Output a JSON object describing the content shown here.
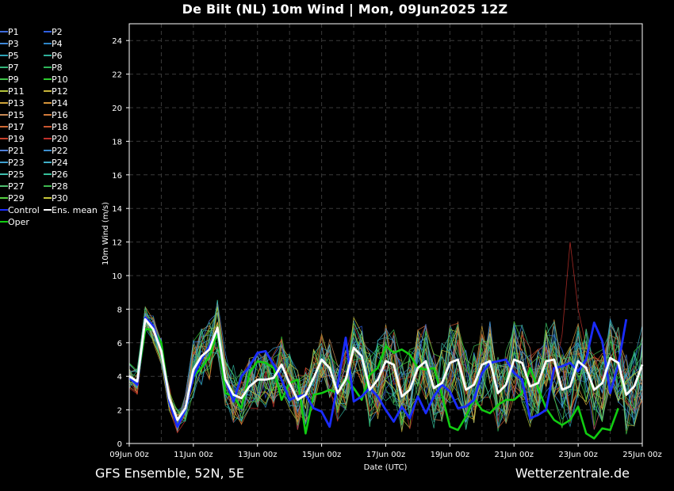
{
  "chart_data": {
    "type": "line",
    "title": "De Bilt  (NL)  10m Wind | Mon, 09Jun2025 12Z",
    "xlabel": "Date (UTC)",
    "ylabel": "10m Wind (m/s)",
    "ylim": [
      0,
      25
    ],
    "yticks": [
      0,
      2,
      4,
      6,
      8,
      10,
      12,
      14,
      16,
      18,
      20,
      22,
      24
    ],
    "x_time_step_hours": 6,
    "x_start": "09Jun 00z",
    "x_ticks": [
      "09Jun 00z",
      "11Jun 00z",
      "13Jun 00z",
      "15Jun 00z",
      "17Jun 00z",
      "19Jun 00z",
      "21Jun 00z",
      "23Jun 00z",
      "25Jun 00z"
    ],
    "grid": true,
    "legend_position": "left",
    "legend": [
      {
        "name": "P1",
        "color": "#3d6bdc"
      },
      {
        "name": "P2",
        "color": "#2f5fe0"
      },
      {
        "name": "P3",
        "color": "#3f88d8"
      },
      {
        "name": "P4",
        "color": "#2e86c8"
      },
      {
        "name": "P5",
        "color": "#2ea3b8"
      },
      {
        "name": "P6",
        "color": "#2fae99"
      },
      {
        "name": "P7",
        "color": "#35b57a"
      },
      {
        "name": "P8",
        "color": "#2fb55a"
      },
      {
        "name": "P9",
        "color": "#3fc448"
      },
      {
        "name": "P10",
        "color": "#2ecb2e"
      },
      {
        "name": "P11",
        "color": "#b2c43a"
      },
      {
        "name": "P12",
        "color": "#c8b43a"
      },
      {
        "name": "P13",
        "color": "#cfa43a"
      },
      {
        "name": "P14",
        "color": "#d6943a"
      },
      {
        "name": "P15",
        "color": "#c98a55"
      },
      {
        "name": "P16",
        "color": "#d07a3a"
      },
      {
        "name": "P17",
        "color": "#d06a35"
      },
      {
        "name": "P18",
        "color": "#c8552f"
      },
      {
        "name": "P19",
        "color": "#c8402a"
      },
      {
        "name": "P20",
        "color": "#c0302a"
      },
      {
        "name": "P21",
        "color": "#4f7fd8"
      },
      {
        "name": "P22",
        "color": "#3d8fd0"
      },
      {
        "name": "P23",
        "color": "#3fa0d0"
      },
      {
        "name": "P24",
        "color": "#40b0c8"
      },
      {
        "name": "P25",
        "color": "#3fc0b0"
      },
      {
        "name": "P26",
        "color": "#35c09a"
      },
      {
        "name": "P27",
        "color": "#50c070"
      },
      {
        "name": "P28",
        "color": "#3fb850"
      },
      {
        "name": "P29",
        "color": "#55d040"
      },
      {
        "name": "P30",
        "color": "#c8c83a"
      },
      {
        "name": "Control",
        "color": "#1a2cff"
      },
      {
        "name": "Ens. mean",
        "color": "#ffffff"
      },
      {
        "name": "Oper",
        "color": "#11cc11"
      }
    ],
    "series": [
      {
        "name": "Control",
        "color": "#1a2cff",
        "values": [
          3.9,
          3.5,
          7.5,
          7.0,
          5.5,
          2.5,
          1.0,
          2.0,
          4.0,
          5.0,
          5.8,
          6.8,
          3.8,
          2.5,
          4.0,
          4.6,
          5.4,
          5.5,
          4.7,
          3.8,
          2.6,
          2.8,
          2.9,
          2.1,
          1.9,
          1.0,
          3.5,
          6.3,
          2.5,
          2.8,
          3.3,
          2.8,
          2.0,
          1.3,
          2.2,
          1.5,
          2.8,
          1.8,
          2.8,
          3.5,
          3.1,
          2.1,
          2.2,
          2.6,
          4.2,
          4.8,
          4.9,
          5.0,
          4.2,
          3.8,
          1.5,
          1.7,
          2.0,
          4.5,
          4.6,
          4.8,
          4.3,
          5.0,
          7.2,
          6.1,
          3.0,
          4.7,
          7.4
        ]
      },
      {
        "name": "Ens. mean",
        "color": "#ffffff",
        "values": [
          4.0,
          3.7,
          7.4,
          6.8,
          5.5,
          2.7,
          1.4,
          2.1,
          4.4,
          5.2,
          5.6,
          6.9,
          3.8,
          2.9,
          2.7,
          3.4,
          3.8,
          3.8,
          3.9,
          4.7,
          3.6,
          2.6,
          2.9,
          3.9,
          5.0,
          4.5,
          3.0,
          3.8,
          5.7,
          5.2,
          3.2,
          3.8,
          4.9,
          4.7,
          2.8,
          3.2,
          4.5,
          4.9,
          3.3,
          3.6,
          4.8,
          5.0,
          3.2,
          3.5,
          4.7,
          4.9,
          3.0,
          3.5,
          5.0,
          4.8,
          3.4,
          3.6,
          4.9,
          5.0,
          3.2,
          3.4,
          4.9,
          4.5,
          3.2,
          3.6,
          5.1,
          4.8,
          2.9,
          3.4,
          4.7
        ]
      },
      {
        "name": "Oper",
        "color": "#11cc11",
        "values": [
          3.9,
          3.6,
          6.8,
          6.8,
          6.0,
          2.6,
          1.4,
          2.1,
          4.0,
          4.5,
          5.2,
          6.6,
          3.0,
          2.8,
          2.1,
          4.2,
          4.9,
          4.8,
          4.5,
          2.6,
          3.6,
          3.8,
          0.6,
          2.9,
          3.0,
          3.2,
          3.0,
          3.9,
          3.3,
          2.6,
          4.1,
          4.5,
          5.8,
          5.4,
          5.6,
          5.3,
          4.5,
          4.4,
          4.5,
          2.9,
          1.0,
          0.8,
          1.6,
          2.7,
          2.0,
          1.8,
          2.3,
          2.6,
          2.6,
          3.0,
          4.5,
          3.3,
          2.1,
          1.4,
          1.1,
          1.4,
          2.2,
          0.6,
          0.3,
          0.9,
          0.8,
          2.1
        ]
      }
    ]
  },
  "footer": {
    "left": "GFS Ensemble, 52N, 5E",
    "right": "Wetterzentrale.de"
  }
}
